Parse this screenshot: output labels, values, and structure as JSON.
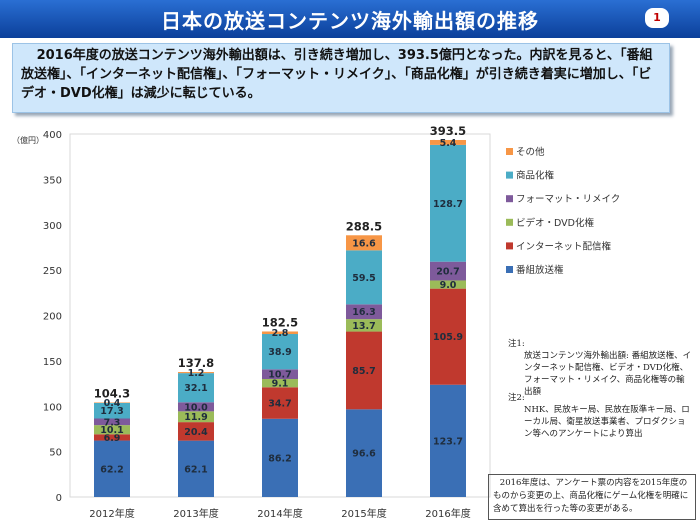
{
  "title": "日本の放送コンテンツ海外輸出額の推移",
  "page_number": "1",
  "summary": "2016年度の放送コンテンツ海外輸出額は、引き続き増加し、393.5億円となった。内訳を見ると、「番組放送権」、「インターネット配信権」、「フォーマット・リメイク」、「商品化権」が引き続き着実に増加し、「ビデオ・DVD化権」は減少に転じている。",
  "notes": {
    "note1_label": "注1:",
    "note1_text": "放送コンテンツ海外輸出額: 番組放送権、インターネット配信権、ビデオ・DVD化権、フォーマット・リメイク、商品化権等の輸出額",
    "note2_label": "注2:",
    "note2_text": "NHK、民放キー局、民放在阪準キー局、ローカル局、衛星放送事業者、プロダクション等へのアンケートにより算出",
    "footnote": "2016年度は、アンケート票の内容を2015年度のものから変更の上、商品化権にゲーム化権を明確に含めて算出を行った等の変更がある。"
  },
  "chart_data": {
    "type": "bar",
    "stacked": true,
    "categories": [
      "2012年度",
      "2013年度",
      "2014年度",
      "2015年度",
      "2016年度"
    ],
    "ylabel": "（億円）",
    "ylim": [
      0,
      400
    ],
    "yticks": [
      0,
      50,
      100,
      150,
      200,
      250,
      300,
      350,
      400
    ],
    "totals": [
      "104.3",
      "137.8",
      "182.5",
      "288.5",
      "393.5"
    ],
    "series": [
      {
        "name": "番組放送権",
        "color": "#3a6fb5",
        "values": [
          62.2,
          62.1,
          86.2,
          96.6,
          123.7
        ]
      },
      {
        "name": "インターネット配信権",
        "color": "#c0392e",
        "values": [
          6.9,
          20.4,
          34.7,
          85.7,
          105.9
        ]
      },
      {
        "name": "ビデオ・DVD化権",
        "color": "#9bbb59",
        "values": [
          10.1,
          11.9,
          9.1,
          13.7,
          9.0
        ]
      },
      {
        "name": "フォーマット・リメイク",
        "color": "#7e5a9b",
        "values": [
          7.3,
          10.0,
          10.7,
          16.3,
          20.7
        ]
      },
      {
        "name": "商品化権",
        "color": "#4bacc6",
        "values": [
          17.3,
          32.1,
          38.9,
          59.5,
          128.7
        ]
      },
      {
        "name": "その他",
        "color": "#f79646",
        "values": [
          0.4,
          1.2,
          2.8,
          16.6,
          5.4
        ]
      }
    ],
    "legend_position": "right",
    "grid": false
  }
}
